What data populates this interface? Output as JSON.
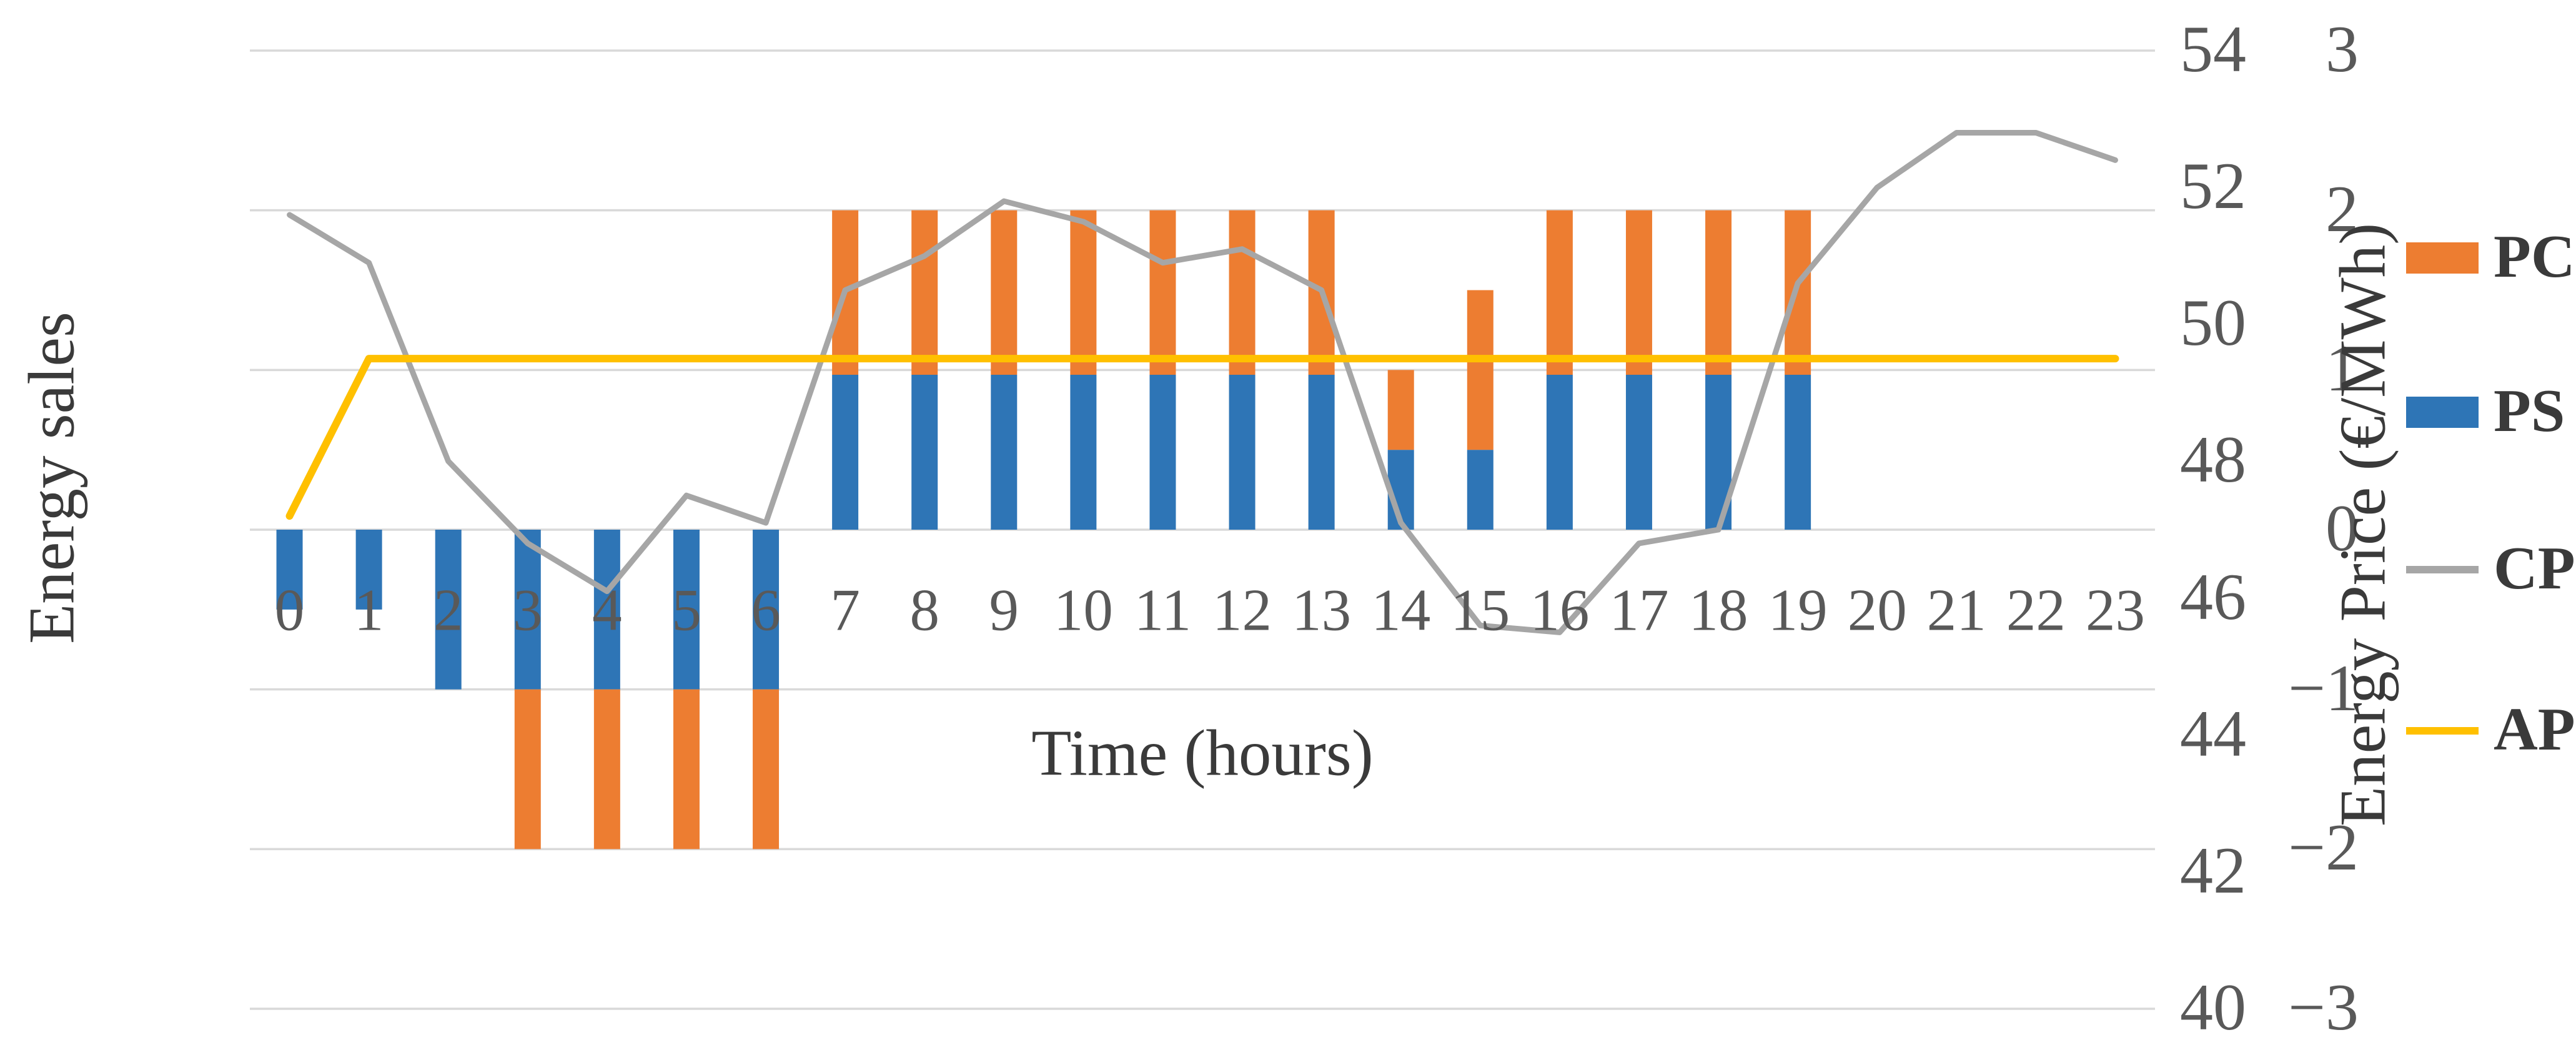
{
  "chart_data": {
    "type": "combo-bar-line",
    "title": "",
    "x_axis": {
      "label": "Time (hours)",
      "categories": [
        "0",
        "1",
        "2",
        "3",
        "4",
        "5",
        "6",
        "7",
        "8",
        "9",
        "10",
        "11",
        "12",
        "13",
        "14",
        "15",
        "16",
        "17",
        "18",
        "19",
        "20",
        "21",
        "22",
        "23"
      ]
    },
    "left_axis": {
      "label": "Energy sales",
      "min": -3,
      "max": 3,
      "tick_labels": [
        "3",
        "2",
        "1",
        "0",
        "−1",
        "−2",
        "−3"
      ],
      "tick_values": [
        3,
        2,
        1,
        0,
        -1,
        -2,
        -3
      ]
    },
    "right_axis": {
      "label": "Energy Price (€/MWh)",
      "min": 40,
      "max": 54,
      "tick_labels": [
        "54",
        "52",
        "50",
        "48",
        "46",
        "44",
        "42",
        "40"
      ],
      "tick_values": [
        54,
        52,
        50,
        48,
        46,
        44,
        42,
        40
      ]
    },
    "grid": {
      "on": true,
      "color": "#D9D9D9"
    },
    "series": [
      {
        "name": "PS",
        "type": "bar",
        "stack": 1,
        "axis": "left",
        "color": "#2E75B6",
        "values": [
          -0.5,
          -0.5,
          -1,
          -1,
          -1,
          -1,
          -1,
          0.97,
          0.97,
          0.97,
          0.97,
          0.97,
          0.97,
          0.97,
          0.5,
          0.5,
          0.97,
          0.97,
          0.97,
          0.97,
          0,
          0,
          0,
          0
        ]
      },
      {
        "name": "PC",
        "type": "bar",
        "stack": 2,
        "axis": "left",
        "color": "#ED7D31",
        "values": [
          0,
          0,
          0,
          -1,
          -1,
          -1,
          -1,
          1.03,
          1.03,
          1.03,
          1.03,
          1.03,
          1.03,
          1.03,
          0.5,
          1.0,
          1.03,
          1.03,
          1.03,
          1.03,
          0,
          0,
          0,
          0
        ]
      },
      {
        "name": "CP",
        "type": "line",
        "axis": "right",
        "color": "#A6A6A6",
        "values": [
          51.6,
          50.9,
          48.0,
          46.8,
          46.1,
          47.5,
          47.1,
          50.5,
          51.0,
          51.8,
          51.5,
          50.9,
          51.1,
          50.5,
          47.1,
          45.6,
          45.5,
          46.8,
          47.0,
          50.6,
          52.0,
          52.8,
          52.8,
          52.4
        ]
      },
      {
        "name": "AP",
        "type": "line",
        "axis": "right",
        "color": "#FFC000",
        "values": [
          47.2,
          49.5,
          49.5,
          49.5,
          49.5,
          49.5,
          49.5,
          49.5,
          49.5,
          49.5,
          49.5,
          49.5,
          49.5,
          49.5,
          49.5,
          49.5,
          49.5,
          49.5,
          49.5,
          49.5,
          49.5,
          49.5,
          49.5,
          49.5
        ]
      }
    ],
    "legend": {
      "position": "right",
      "items": [
        {
          "label": "PC",
          "marker": "square",
          "color": "#ED7D31"
        },
        {
          "label": "PS",
          "marker": "square",
          "color": "#2E75B6"
        },
        {
          "label": "CP",
          "marker": "line",
          "color": "#A6A6A6"
        },
        {
          "label": "AP",
          "marker": "line",
          "color": "#FFC000"
        }
      ]
    }
  },
  "styles": {
    "background": "#FFFFFF",
    "tick_text_color": "#595959",
    "title_text_color": "#3A3A3A",
    "gridline_color": "#D9D9D9"
  }
}
